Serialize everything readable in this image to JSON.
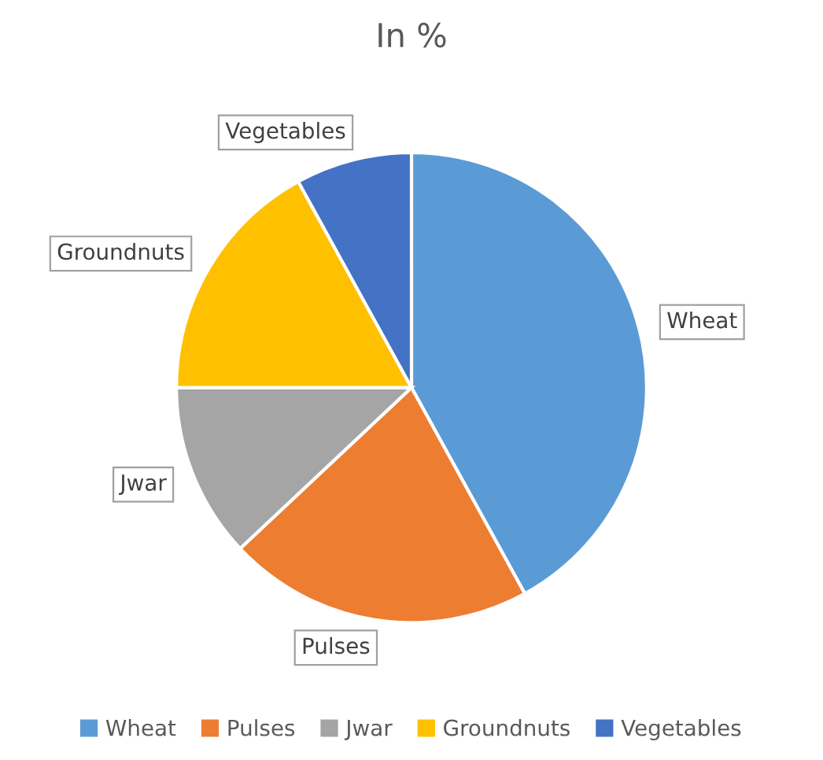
{
  "chart_data": {
    "type": "pie",
    "title": "In %",
    "categories": [
      "Wheat",
      "Pulses",
      "Jwar",
      "Groundnuts",
      "Vegetables"
    ],
    "values": [
      42,
      21,
      12,
      17,
      8
    ],
    "colors": [
      "#5b9bd5",
      "#ed7d31",
      "#a5a5a5",
      "#ffc000",
      "#4472c4"
    ],
    "legend": "bottom"
  }
}
